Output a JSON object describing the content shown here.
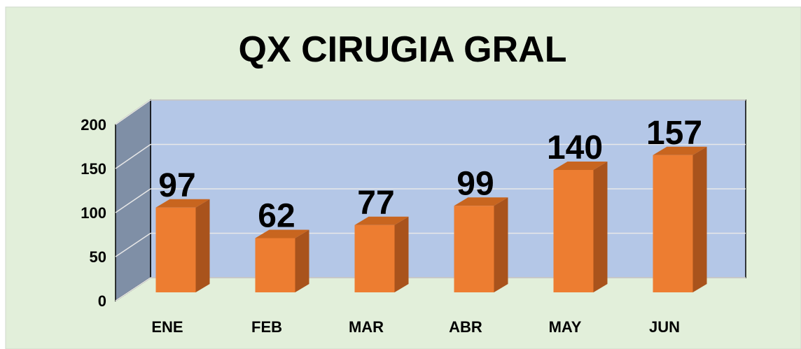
{
  "chart_data": {
    "type": "bar",
    "title": "QX CIRUGIA GRAL",
    "categories": [
      "ENE",
      "FEB",
      "MAR",
      "ABR",
      "MAY",
      "JUN"
    ],
    "values": [
      97,
      62,
      77,
      99,
      140,
      157
    ],
    "color": "#ed7d31",
    "ylim": [
      0,
      200
    ],
    "yticks": [
      0,
      50,
      100,
      150,
      200
    ],
    "grid": true
  }
}
